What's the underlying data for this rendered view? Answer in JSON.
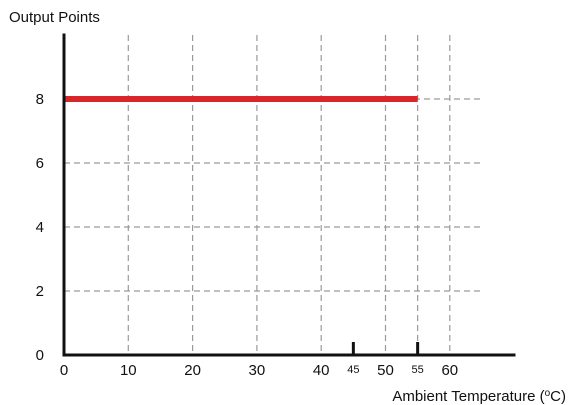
{
  "chart_data": {
    "type": "line",
    "title": "",
    "ylabel": "Output Points",
    "xlabel": "Ambient Temperature (",
    "xlabel_degree": "o",
    "xlabel_unit": "C)",
    "xlim": [
      0,
      70
    ],
    "ylim": [
      0,
      10
    ],
    "grid": true,
    "x_ticks": [
      {
        "value": 0,
        "label": "0"
      },
      {
        "value": 10,
        "label": "10"
      },
      {
        "value": 20,
        "label": "20"
      },
      {
        "value": 30,
        "label": "30"
      },
      {
        "value": 40,
        "label": "40"
      },
      {
        "value": 50,
        "label": "50"
      },
      {
        "value": 60,
        "label": "60"
      }
    ],
    "x_minor_ticks": [
      {
        "value": 45,
        "label": "45"
      },
      {
        "value": 55,
        "label": "55"
      }
    ],
    "x_grid": [
      10,
      20,
      30,
      40,
      50,
      55,
      60
    ],
    "y_ticks": [
      {
        "value": 0,
        "label": "0"
      },
      {
        "value": 2,
        "label": "2"
      },
      {
        "value": 4,
        "label": "4"
      },
      {
        "value": 6,
        "label": "6"
      },
      {
        "value": 8,
        "label": "8"
      }
    ],
    "y_grid": [
      2,
      4,
      6,
      8
    ],
    "series": [
      {
        "color": "#d8262b",
        "x": [
          0,
          55
        ],
        "y": [
          8,
          8
        ]
      }
    ]
  }
}
